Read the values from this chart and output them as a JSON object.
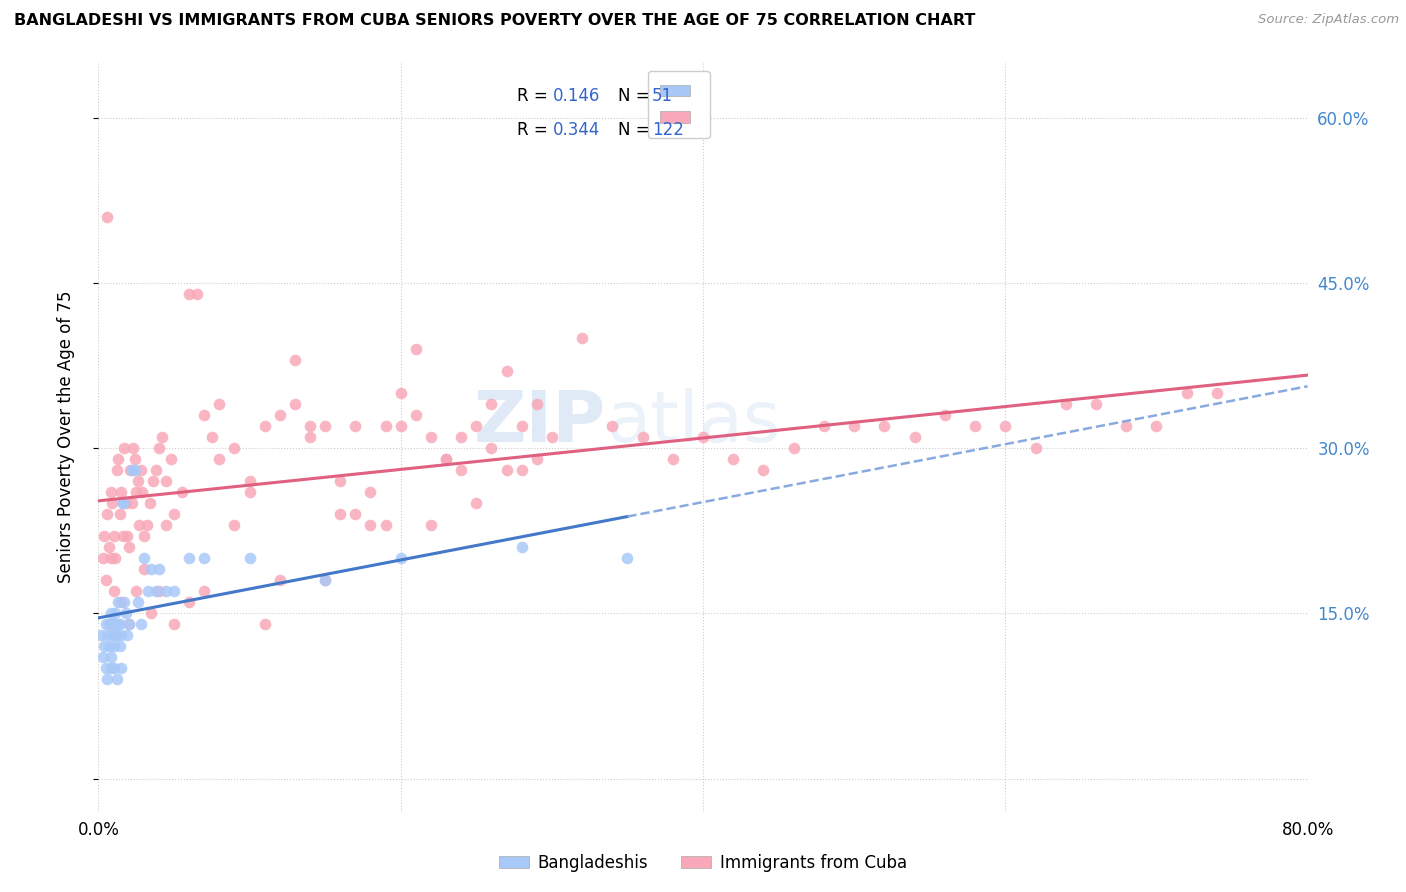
{
  "title": "BANGLADESHI VS IMMIGRANTS FROM CUBA SENIORS POVERTY OVER THE AGE OF 75 CORRELATION CHART",
  "source": "Source: ZipAtlas.com",
  "ylabel": "Seniors Poverty Over the Age of 75",
  "xlim": [
    0.0,
    0.8
  ],
  "ylim": [
    -0.03,
    0.65
  ],
  "yticks": [
    0.0,
    0.15,
    0.3,
    0.45,
    0.6
  ],
  "xticks": [
    0.0,
    0.2,
    0.4,
    0.6,
    0.8
  ],
  "xtick_labels": [
    "0.0%",
    "",
    "",
    "",
    "80.0%"
  ],
  "ytick_labels_right": [
    "",
    "15.0%",
    "30.0%",
    "45.0%",
    "60.0%"
  ],
  "r_bangladeshi": 0.146,
  "n_bangladeshi": 51,
  "r_cuba": 0.344,
  "n_cuba": 122,
  "color_bangladeshi": "#a8c8f8",
  "color_cuba": "#f8a8b8",
  "line_color_bangladeshi": "#4478c8",
  "line_color_cuba": "#e06080",
  "line_color_dashed": "#88aae0",
  "watermark": "ZIPatlas",
  "legend_label_bangladeshi": "Bangladeshis",
  "legend_label_cuba": "Immigrants from Cuba",
  "bangladeshi_x": [
    0.002,
    0.003,
    0.004,
    0.005,
    0.005,
    0.006,
    0.006,
    0.007,
    0.007,
    0.008,
    0.008,
    0.008,
    0.009,
    0.009,
    0.01,
    0.01,
    0.01,
    0.011,
    0.011,
    0.012,
    0.012,
    0.013,
    0.013,
    0.014,
    0.014,
    0.015,
    0.015,
    0.016,
    0.016,
    0.017,
    0.018,
    0.019,
    0.02,
    0.022,
    0.024,
    0.026,
    0.028,
    0.03,
    0.033,
    0.035,
    0.038,
    0.04,
    0.045,
    0.05,
    0.06,
    0.07,
    0.1,
    0.15,
    0.2,
    0.28,
    0.35
  ],
  "bangladeshi_y": [
    0.13,
    0.11,
    0.12,
    0.1,
    0.14,
    0.09,
    0.13,
    0.12,
    0.14,
    0.1,
    0.11,
    0.15,
    0.13,
    0.14,
    0.12,
    0.1,
    0.14,
    0.13,
    0.15,
    0.09,
    0.13,
    0.14,
    0.16,
    0.12,
    0.14,
    0.1,
    0.13,
    0.25,
    0.25,
    0.16,
    0.15,
    0.13,
    0.14,
    0.28,
    0.28,
    0.16,
    0.14,
    0.2,
    0.17,
    0.19,
    0.17,
    0.19,
    0.17,
    0.17,
    0.2,
    0.2,
    0.2,
    0.18,
    0.2,
    0.21,
    0.2
  ],
  "cuba_x": [
    0.003,
    0.004,
    0.005,
    0.006,
    0.007,
    0.008,
    0.008,
    0.009,
    0.01,
    0.011,
    0.012,
    0.013,
    0.014,
    0.015,
    0.016,
    0.017,
    0.018,
    0.019,
    0.02,
    0.021,
    0.022,
    0.023,
    0.024,
    0.025,
    0.026,
    0.027,
    0.028,
    0.029,
    0.03,
    0.032,
    0.034,
    0.036,
    0.038,
    0.04,
    0.042,
    0.045,
    0.048,
    0.05,
    0.055,
    0.06,
    0.065,
    0.07,
    0.075,
    0.08,
    0.09,
    0.1,
    0.11,
    0.12,
    0.13,
    0.14,
    0.15,
    0.16,
    0.17,
    0.18,
    0.19,
    0.2,
    0.21,
    0.22,
    0.23,
    0.24,
    0.25,
    0.26,
    0.27,
    0.28,
    0.29,
    0.3,
    0.32,
    0.34,
    0.36,
    0.38,
    0.4,
    0.42,
    0.44,
    0.46,
    0.48,
    0.5,
    0.52,
    0.54,
    0.56,
    0.58,
    0.6,
    0.62,
    0.64,
    0.66,
    0.68,
    0.7,
    0.72,
    0.74,
    0.006,
    0.01,
    0.015,
    0.02,
    0.025,
    0.03,
    0.035,
    0.04,
    0.045,
    0.05,
    0.06,
    0.07,
    0.08,
    0.09,
    0.1,
    0.11,
    0.12,
    0.13,
    0.14,
    0.15,
    0.16,
    0.17,
    0.18,
    0.19,
    0.2,
    0.21,
    0.22,
    0.23,
    0.24,
    0.25,
    0.26,
    0.27,
    0.28,
    0.29
  ],
  "cuba_y": [
    0.2,
    0.22,
    0.18,
    0.24,
    0.21,
    0.2,
    0.26,
    0.25,
    0.22,
    0.2,
    0.28,
    0.29,
    0.24,
    0.26,
    0.22,
    0.3,
    0.25,
    0.22,
    0.21,
    0.28,
    0.25,
    0.3,
    0.29,
    0.26,
    0.27,
    0.23,
    0.28,
    0.26,
    0.22,
    0.23,
    0.25,
    0.27,
    0.28,
    0.3,
    0.31,
    0.27,
    0.29,
    0.24,
    0.26,
    0.44,
    0.44,
    0.33,
    0.31,
    0.34,
    0.3,
    0.27,
    0.32,
    0.33,
    0.34,
    0.31,
    0.32,
    0.24,
    0.24,
    0.26,
    0.32,
    0.32,
    0.33,
    0.31,
    0.29,
    0.31,
    0.32,
    0.34,
    0.37,
    0.32,
    0.34,
    0.31,
    0.4,
    0.32,
    0.31,
    0.29,
    0.31,
    0.29,
    0.28,
    0.3,
    0.32,
    0.32,
    0.32,
    0.31,
    0.33,
    0.32,
    0.32,
    0.3,
    0.34,
    0.34,
    0.32,
    0.32,
    0.35,
    0.35,
    0.51,
    0.17,
    0.16,
    0.14,
    0.17,
    0.19,
    0.15,
    0.17,
    0.23,
    0.14,
    0.16,
    0.17,
    0.29,
    0.23,
    0.26,
    0.14,
    0.18,
    0.38,
    0.32,
    0.18,
    0.27,
    0.32,
    0.23,
    0.23,
    0.35,
    0.39,
    0.23,
    0.29,
    0.28,
    0.25,
    0.3,
    0.28,
    0.28,
    0.29
  ]
}
